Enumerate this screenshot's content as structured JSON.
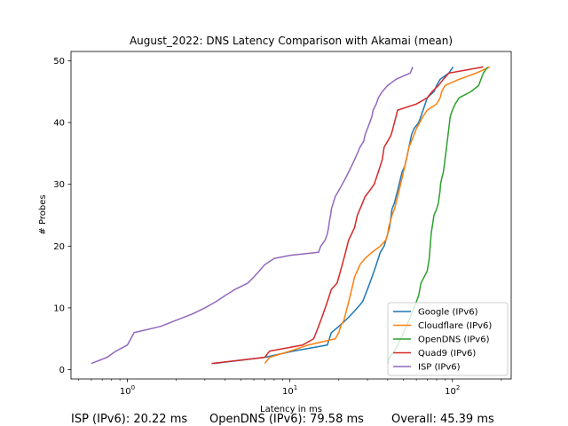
{
  "chart_data": {
    "type": "line",
    "title": "August_2022: DNS Latency Comparison with Akamai (mean)",
    "xlabel": "Latency in ms",
    "ylabel": "# Probes",
    "xscale": "log",
    "xlim": [
      0.45,
      230
    ],
    "ylim": [
      -1.5,
      51.5
    ],
    "x_ticks": [
      1,
      10,
      100
    ],
    "x_tick_labels": [
      "10^0",
      "10^1",
      "10^2"
    ],
    "y_ticks": [
      0,
      10,
      20,
      30,
      40,
      50
    ],
    "grid": false,
    "legend_position": "lower-right",
    "series": [
      {
        "name": "Google (IPv6)",
        "color": "#1f77b4",
        "points": [
          [
            3.4,
            1
          ],
          [
            7.0,
            2
          ],
          [
            10.5,
            3
          ],
          [
            17.0,
            4
          ],
          [
            17.5,
            5
          ],
          [
            18.0,
            6
          ],
          [
            20.0,
            7
          ],
          [
            22.0,
            8
          ],
          [
            24.0,
            9
          ],
          [
            26.0,
            10
          ],
          [
            28.0,
            11
          ],
          [
            29.0,
            12
          ],
          [
            30.0,
            13
          ],
          [
            31.0,
            14
          ],
          [
            32.0,
            15
          ],
          [
            33.0,
            16
          ],
          [
            34.0,
            17
          ],
          [
            35.0,
            18
          ],
          [
            36.0,
            19
          ],
          [
            38.0,
            20
          ],
          [
            39.0,
            21
          ],
          [
            40.0,
            22
          ],
          [
            41.0,
            23
          ],
          [
            41.5,
            24
          ],
          [
            42.0,
            25
          ],
          [
            42.5,
            26
          ],
          [
            44.0,
            27
          ],
          [
            45.0,
            28
          ],
          [
            46.0,
            29
          ],
          [
            47.0,
            30
          ],
          [
            48.0,
            31
          ],
          [
            49.0,
            32
          ],
          [
            51.0,
            33
          ],
          [
            52.0,
            34
          ],
          [
            53.0,
            35
          ],
          [
            54.0,
            36
          ],
          [
            55.0,
            37
          ],
          [
            56.0,
            38
          ],
          [
            58.0,
            39
          ],
          [
            62.0,
            40
          ],
          [
            64.0,
            41
          ],
          [
            66.0,
            42
          ],
          [
            68.0,
            43
          ],
          [
            70.0,
            44
          ],
          [
            77.0,
            45
          ],
          [
            80.0,
            46
          ],
          [
            84.0,
            47
          ],
          [
            95.0,
            48
          ],
          [
            101.0,
            49
          ]
        ]
      },
      {
        "name": "Cloudflare (IPv6)",
        "color": "#ff7f0e",
        "points": [
          [
            7.0,
            1
          ],
          [
            7.5,
            2
          ],
          [
            10.0,
            3
          ],
          [
            13.0,
            4
          ],
          [
            19.0,
            5
          ],
          [
            20.0,
            6
          ],
          [
            20.5,
            7
          ],
          [
            21.5,
            8
          ],
          [
            22.0,
            9
          ],
          [
            22.5,
            10
          ],
          [
            23.0,
            11
          ],
          [
            23.5,
            12
          ],
          [
            24.0,
            13
          ],
          [
            24.5,
            14
          ],
          [
            25.0,
            15
          ],
          [
            26.0,
            16
          ],
          [
            27.0,
            17
          ],
          [
            29.0,
            18
          ],
          [
            32.0,
            19
          ],
          [
            36.0,
            20
          ],
          [
            39.0,
            21
          ],
          [
            40.0,
            22
          ],
          [
            40.5,
            23
          ],
          [
            41.5,
            24
          ],
          [
            42.5,
            25
          ],
          [
            44.0,
            26
          ],
          [
            45.0,
            27
          ],
          [
            46.0,
            28
          ],
          [
            47.0,
            29
          ],
          [
            48.0,
            30
          ],
          [
            49.0,
            31
          ],
          [
            50.0,
            32
          ],
          [
            51.0,
            33
          ],
          [
            52.0,
            34
          ],
          [
            53.0,
            35
          ],
          [
            54.0,
            36
          ],
          [
            56.0,
            37
          ],
          [
            58.0,
            38
          ],
          [
            60.0,
            39
          ],
          [
            63.0,
            40
          ],
          [
            66.0,
            41
          ],
          [
            70.0,
            42
          ],
          [
            80.0,
            43
          ],
          [
            84.0,
            44
          ],
          [
            86.0,
            45
          ],
          [
            90.0,
            46
          ],
          [
            110.0,
            47
          ],
          [
            140.0,
            48
          ],
          [
            170.0,
            49
          ]
        ]
      },
      {
        "name": "OpenDNS (IPv6)",
        "color": "#2ca02c",
        "points": [
          [
            40.0,
            1
          ],
          [
            41.0,
            2
          ],
          [
            44.0,
            3
          ],
          [
            46.0,
            4
          ],
          [
            48.0,
            5
          ],
          [
            50.0,
            6
          ],
          [
            52.0,
            7
          ],
          [
            54.0,
            8
          ],
          [
            56.0,
            9
          ],
          [
            58.0,
            10
          ],
          [
            60.0,
            11
          ],
          [
            62.0,
            12
          ],
          [
            63.0,
            13
          ],
          [
            64.0,
            14
          ],
          [
            67.0,
            15
          ],
          [
            70.0,
            16
          ],
          [
            71.0,
            17
          ],
          [
            72.0,
            18
          ],
          [
            72.5,
            19
          ],
          [
            73.0,
            20
          ],
          [
            73.5,
            21
          ],
          [
            74.0,
            22
          ],
          [
            75.0,
            23
          ],
          [
            76.0,
            24
          ],
          [
            77.0,
            25
          ],
          [
            80.0,
            26
          ],
          [
            82.0,
            27
          ],
          [
            83.0,
            28
          ],
          [
            84.0,
            29
          ],
          [
            84.5,
            30
          ],
          [
            86.0,
            31
          ],
          [
            88.0,
            32
          ],
          [
            89.0,
            33
          ],
          [
            90.0,
            34
          ],
          [
            91.0,
            35
          ],
          [
            92.0,
            36
          ],
          [
            93.0,
            37
          ],
          [
            94.0,
            38
          ],
          [
            95.0,
            39
          ],
          [
            96.0,
            40
          ],
          [
            97.0,
            41
          ],
          [
            100.0,
            42
          ],
          [
            104.0,
            43
          ],
          [
            110.0,
            44
          ],
          [
            130.0,
            45
          ],
          [
            145.0,
            46
          ],
          [
            150.0,
            47
          ],
          [
            155.0,
            48
          ],
          [
            165.0,
            49
          ]
        ]
      },
      {
        "name": "Quad9 (IPv6)",
        "color": "#d62728",
        "points": [
          [
            3.3,
            1
          ],
          [
            7.0,
            2
          ],
          [
            7.5,
            3
          ],
          [
            12.0,
            4
          ],
          [
            14.0,
            5
          ],
          [
            14.5,
            6
          ],
          [
            15.0,
            7
          ],
          [
            15.5,
            8
          ],
          [
            16.0,
            9
          ],
          [
            16.5,
            10
          ],
          [
            17.0,
            11
          ],
          [
            17.5,
            12
          ],
          [
            18.0,
            13
          ],
          [
            19.5,
            14
          ],
          [
            20.0,
            15
          ],
          [
            20.5,
            16
          ],
          [
            21.0,
            17
          ],
          [
            21.5,
            18
          ],
          [
            22.0,
            19
          ],
          [
            22.5,
            20
          ],
          [
            23.0,
            21
          ],
          [
            24.0,
            22
          ],
          [
            25.0,
            23
          ],
          [
            25.5,
            24
          ],
          [
            26.0,
            25
          ],
          [
            27.0,
            26
          ],
          [
            28.0,
            27
          ],
          [
            29.0,
            28
          ],
          [
            31.0,
            29
          ],
          [
            33.0,
            30
          ],
          [
            34.0,
            31
          ],
          [
            35.0,
            32
          ],
          [
            36.0,
            33
          ],
          [
            37.0,
            34
          ],
          [
            37.5,
            35
          ],
          [
            38.0,
            36
          ],
          [
            40.0,
            37
          ],
          [
            42.0,
            38
          ],
          [
            43.0,
            39
          ],
          [
            44.0,
            40
          ],
          [
            45.0,
            41
          ],
          [
            46.0,
            42
          ],
          [
            60.0,
            43
          ],
          [
            70.0,
            44
          ],
          [
            75.0,
            45
          ],
          [
            82.0,
            46
          ],
          [
            88.0,
            47
          ],
          [
            95.0,
            48
          ],
          [
            155.0,
            49
          ]
        ]
      },
      {
        "name": "ISP (IPv6)",
        "color": "#9467bd",
        "points": [
          [
            0.6,
            1
          ],
          [
            0.75,
            2
          ],
          [
            0.85,
            3
          ],
          [
            1.0,
            4
          ],
          [
            1.05,
            5
          ],
          [
            1.1,
            6
          ],
          [
            1.6,
            7
          ],
          [
            2.0,
            8
          ],
          [
            2.5,
            9
          ],
          [
            3.0,
            10
          ],
          [
            3.5,
            11
          ],
          [
            4.0,
            12
          ],
          [
            4.6,
            13
          ],
          [
            5.5,
            14
          ],
          [
            6.0,
            15
          ],
          [
            6.5,
            16
          ],
          [
            7.0,
            17
          ],
          [
            8.0,
            18
          ],
          [
            10.0,
            18.5
          ],
          [
            15.0,
            19
          ],
          [
            15.5,
            20
          ],
          [
            16.5,
            21
          ],
          [
            17.0,
            22
          ],
          [
            17.3,
            23
          ],
          [
            17.5,
            24
          ],
          [
            17.8,
            25
          ],
          [
            18.0,
            26
          ],
          [
            18.5,
            27
          ],
          [
            19.0,
            28
          ],
          [
            20.0,
            29
          ],
          [
            21.0,
            30
          ],
          [
            22.0,
            31
          ],
          [
            23.0,
            32
          ],
          [
            24.0,
            33
          ],
          [
            25.0,
            34
          ],
          [
            26.0,
            35
          ],
          [
            27.0,
            36
          ],
          [
            28.5,
            37
          ],
          [
            29.0,
            38
          ],
          [
            30.0,
            39
          ],
          [
            31.0,
            40
          ],
          [
            32.0,
            41
          ],
          [
            32.5,
            42
          ],
          [
            34.0,
            43
          ],
          [
            35.0,
            44
          ],
          [
            37.0,
            45
          ],
          [
            40.0,
            46
          ],
          [
            45.0,
            47
          ],
          [
            55.0,
            48
          ],
          [
            57.0,
            49
          ]
        ]
      }
    ]
  },
  "footer": {
    "isp": "ISP (IPv6): 20.22 ms",
    "opendns": "OpenDNS (IPv6): 79.58 ms",
    "overall": "Overall: 45.39 ms"
  }
}
